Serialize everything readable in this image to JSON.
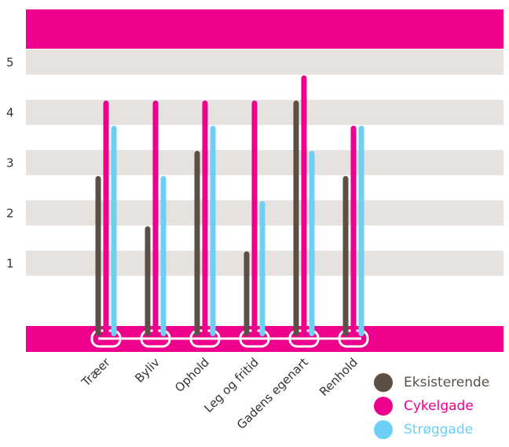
{
  "chart_data": {
    "type": "bar",
    "categories": [
      "Træer",
      "Byliv",
      "Ophold",
      "Leg og fritid",
      "Gadens egenart",
      "Renhold"
    ],
    "series": [
      {
        "name": "Eksisterende",
        "values": [
          3,
          2,
          3.5,
          1.5,
          4.5,
          3
        ],
        "color": "#5c4f45"
      },
      {
        "name": "Cykelgade",
        "values": [
          4.5,
          4.5,
          4.5,
          4.5,
          5,
          4
        ],
        "color": "#ec008c"
      },
      {
        "name": "Strøggade",
        "values": [
          4,
          3,
          4,
          2.5,
          3.5,
          4
        ],
        "color": "#6dcff6"
      }
    ],
    "yticks": [
      "1",
      "2",
      "3",
      "4",
      "5"
    ],
    "ylim": [
      0,
      5
    ],
    "legend_position": "bottom-right",
    "colors": {
      "band": "#ec008c",
      "stripe": "#e6e2e0",
      "connector": "#ffffff"
    }
  }
}
